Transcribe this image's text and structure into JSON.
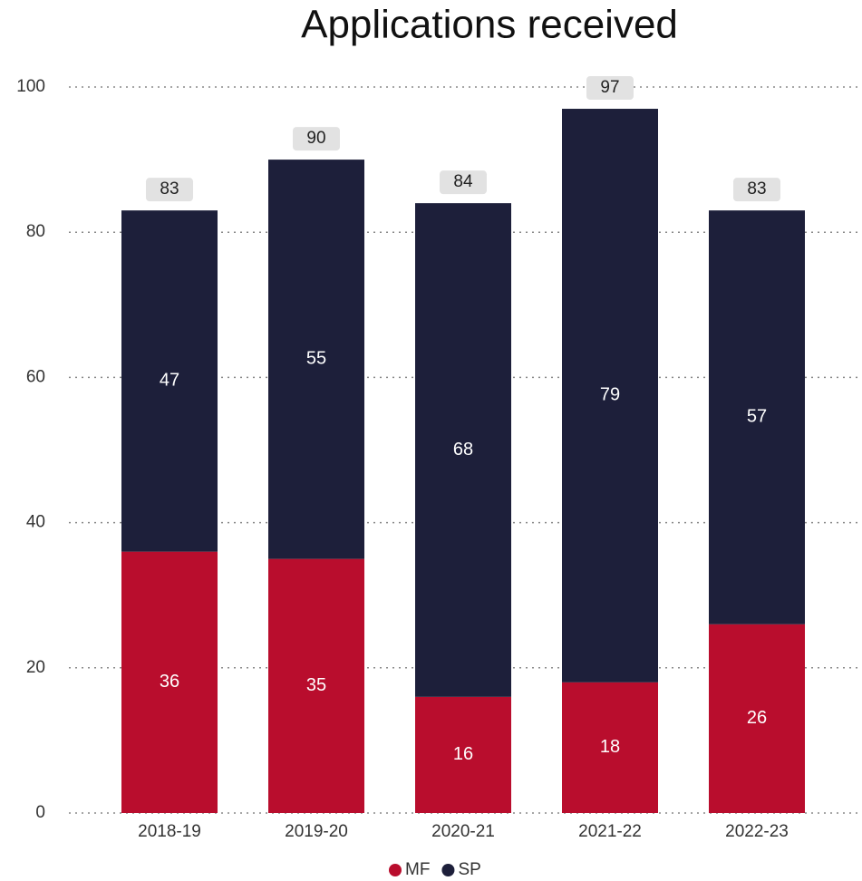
{
  "chart_data": {
    "type": "stacked_bar",
    "title": "Applications received",
    "categories": [
      "2018-19",
      "2019-20",
      "2020-21",
      "2021-22",
      "2022-23"
    ],
    "series": [
      {
        "name": "MF",
        "color": "#b90d2d",
        "values": [
          36,
          35,
          16,
          18,
          26
        ]
      },
      {
        "name": "SP",
        "color": "#1d1f3a",
        "values": [
          47,
          55,
          68,
          79,
          57
        ]
      }
    ],
    "totals": [
      83,
      90,
      84,
      97,
      83
    ],
    "ylim": [
      0,
      100
    ],
    "yticks": [
      0,
      20,
      40,
      60,
      80,
      100
    ],
    "grid": true,
    "legend": "bottom"
  }
}
